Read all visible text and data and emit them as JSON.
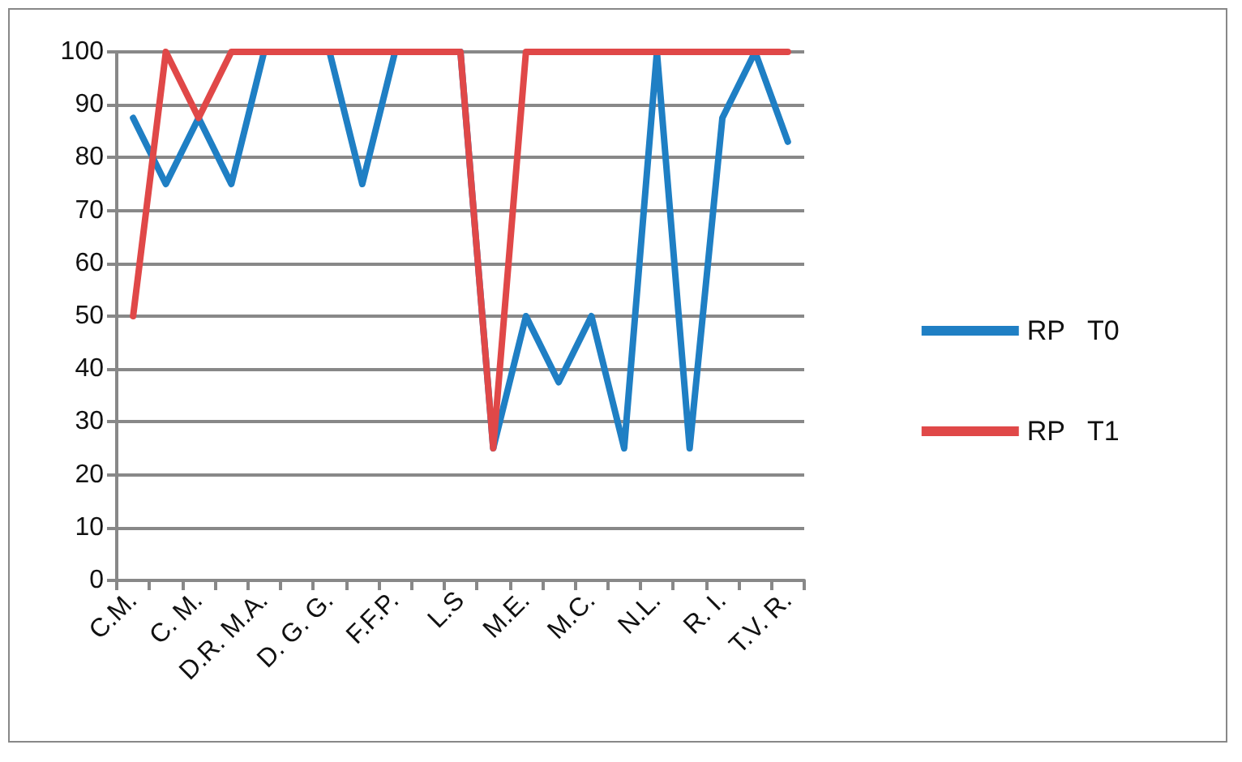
{
  "chart_data": {
    "type": "line",
    "categories": [
      "C.M.",
      null,
      "C. M.",
      null,
      "D.R. M.A.",
      null,
      "D. G. G.",
      null,
      "F.F.P.",
      null,
      "L.S",
      null,
      "M.E.",
      null,
      "M.C.",
      null,
      "N.L.",
      null,
      "R. I.",
      null,
      "T.V. R."
    ],
    "series": [
      {
        "name": "RP   T0",
        "color": "#1f7fc4",
        "values": [
          87.5,
          75,
          87.5,
          75,
          100,
          null,
          100,
          75,
          100,
          null,
          100,
          25,
          50,
          37.5,
          50,
          25,
          100,
          25,
          87.5,
          100,
          83
        ]
      },
      {
        "name": "RP   T1",
        "color": "#e04848",
        "values": [
          50,
          100,
          87.5,
          100,
          100,
          100,
          100,
          100,
          100,
          100,
          100,
          25,
          100,
          100,
          100,
          100,
          100,
          100,
          100,
          100,
          100
        ]
      }
    ],
    "ylim": [
      0,
      100
    ],
    "yticks": [
      0,
      10,
      20,
      30,
      40,
      50,
      60,
      70,
      80,
      90,
      100
    ],
    "grid": "y",
    "legend": "right",
    "marker": "none",
    "line_style": "solid"
  }
}
